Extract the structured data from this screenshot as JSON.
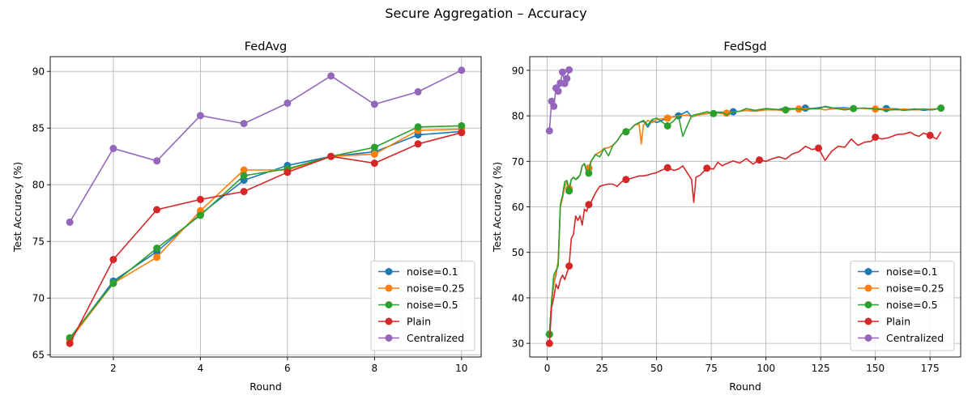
{
  "figure": {
    "suptitle": "Secure Aggregation – Accuracy"
  },
  "chart_data": [
    {
      "type": "line",
      "title": "FedAvg",
      "xlabel": "Round",
      "ylabel": "Test Accuracy (%)",
      "xlim": [
        0.55,
        10.45
      ],
      "ylim": [
        64.8,
        91.3
      ],
      "xticks": [
        2,
        4,
        6,
        8,
        10
      ],
      "yticks": [
        65,
        70,
        75,
        80,
        85,
        90
      ],
      "grid": true,
      "legend": "lower right",
      "series": [
        {
          "name": "noise=0.1",
          "color": "#1f77b4",
          "x": [
            1,
            2,
            3,
            4,
            5,
            6,
            7,
            8,
            9,
            10
          ],
          "y": [
            66.4,
            71.5,
            74.1,
            77.4,
            80.4,
            81.7,
            82.5,
            82.9,
            84.4,
            84.7
          ]
        },
        {
          "name": "noise=0.25",
          "color": "#ff7f0e",
          "x": [
            1,
            2,
            3,
            4,
            5,
            6,
            7,
            8,
            9,
            10
          ],
          "y": [
            66.3,
            71.3,
            73.6,
            77.7,
            81.3,
            81.3,
            82.5,
            82.7,
            84.8,
            84.9
          ]
        },
        {
          "name": "noise=0.5",
          "color": "#2ca02c",
          "x": [
            1,
            2,
            3,
            4,
            5,
            6,
            7,
            8,
            9,
            10
          ],
          "y": [
            66.5,
            71.3,
            74.4,
            77.3,
            80.8,
            81.4,
            82.5,
            83.3,
            85.1,
            85.2
          ]
        },
        {
          "name": "Plain",
          "color": "#d62728",
          "x": [
            1,
            2,
            3,
            4,
            5,
            6,
            7,
            8,
            9,
            10
          ],
          "y": [
            66.0,
            73.4,
            77.8,
            78.7,
            79.4,
            81.1,
            82.5,
            81.9,
            83.6,
            84.6
          ]
        },
        {
          "name": "Centralized",
          "color": "#9467bd",
          "x": [
            1,
            2,
            3,
            4,
            5,
            6,
            7,
            8,
            9,
            10
          ],
          "y": [
            76.7,
            83.2,
            82.1,
            86.1,
            85.4,
            87.2,
            89.6,
            87.1,
            88.2,
            90.1
          ]
        }
      ]
    },
    {
      "type": "line",
      "title": "FedSgd",
      "xlabel": "Round",
      "ylabel": "Test Accuracy (%)",
      "xlim": [
        -8,
        189
      ],
      "ylim": [
        27,
        93
      ],
      "xticks": [
        0,
        25,
        50,
        75,
        100,
        125,
        150,
        175
      ],
      "yticks": [
        30,
        40,
        50,
        60,
        70,
        80,
        90
      ],
      "grid": true,
      "legend": "lower right",
      "markevery": 9,
      "series": [
        {
          "name": "noise=0.1",
          "color": "#1f77b4",
          "x": [
            1,
            2,
            3,
            4,
            5,
            6,
            7,
            8,
            9,
            10,
            11,
            12,
            13,
            14,
            15,
            16,
            17,
            18,
            19,
            20,
            22,
            24,
            26,
            28,
            30,
            32,
            34,
            36,
            38,
            40,
            42,
            44,
            46,
            48,
            50,
            55,
            60,
            64,
            66,
            68,
            70,
            73,
            76,
            80,
            82,
            85,
            88,
            91,
            95,
            100,
            105,
            109,
            112,
            115,
            118,
            121,
            124,
            127,
            130,
            136,
            140,
            145,
            150,
            155,
            160,
            163,
            168,
            172,
            176,
            180
          ],
          "y": [
            32,
            39,
            43,
            45,
            48,
            60,
            62,
            64.5,
            65.5,
            64,
            66,
            66.5,
            66,
            66.3,
            67,
            69,
            69.5,
            67.8,
            68.5,
            70,
            71.5,
            72,
            72.8,
            73,
            73.5,
            74.5,
            76,
            76.5,
            77,
            78,
            78.5,
            78.8,
            77.5,
            79,
            78.5,
            79.5,
            80,
            81,
            79.8,
            80,
            80.3,
            80.5,
            80.8,
            80.8,
            80.6,
            80.9,
            81,
            81.2,
            81,
            81.4,
            81.3,
            81.8,
            81.5,
            81.6,
            81.7,
            81.6,
            81.8,
            82,
            81.7,
            81.8,
            81.6,
            81.7,
            81.5,
            81.6,
            81.5,
            81.3,
            81.5,
            81.2,
            81.4,
            81.6
          ]
        },
        {
          "name": "noise=0.25",
          "color": "#ff7f0e",
          "x": [
            1,
            2,
            3,
            4,
            5,
            6,
            7,
            8,
            9,
            10,
            11,
            12,
            13,
            14,
            15,
            16,
            17,
            18,
            19,
            20,
            22,
            24,
            26,
            28,
            30,
            32,
            34,
            36,
            38,
            40,
            42,
            43,
            44,
            46,
            48,
            50,
            55,
            60,
            64,
            66,
            68,
            70,
            73,
            76,
            80,
            82,
            85,
            88,
            91,
            95,
            100,
            105,
            109,
            112,
            115,
            118,
            121,
            124,
            127,
            130,
            136,
            140,
            145,
            150,
            155,
            160,
            163,
            168,
            172,
            176,
            180
          ],
          "y": [
            32,
            39,
            43,
            45.5,
            48,
            60,
            62,
            64.5,
            65.5,
            64,
            66,
            66.5,
            66,
            66.5,
            67,
            69,
            69.5,
            68,
            68.5,
            70,
            71.5,
            72,
            72.8,
            73,
            73.5,
            74.5,
            76,
            76.5,
            77,
            78,
            78.2,
            73.8,
            78,
            79,
            78.5,
            79.2,
            79.5,
            80,
            80.2,
            79.8,
            80,
            80.3,
            80.5,
            80.8,
            80.5,
            80.6,
            80.9,
            81,
            81.2,
            81,
            81.3,
            81.3,
            81.1,
            81.4,
            81.5,
            81.6,
            81.5,
            81.6,
            81.3,
            81.5,
            81.6,
            81.7,
            81.6,
            81.5,
            81.6,
            81.3,
            81.5,
            81.3,
            81.4,
            81.5,
            81.6
          ]
        },
        {
          "name": "noise=0.5",
          "color": "#2ca02c",
          "x": [
            1,
            2,
            3,
            4,
            5,
            6,
            7,
            8,
            9,
            10,
            11,
            12,
            13,
            14,
            15,
            16,
            17,
            18,
            19,
            20,
            22,
            24,
            26,
            28,
            30,
            32,
            34,
            36,
            37,
            38,
            40,
            42,
            44,
            46,
            48,
            50,
            55,
            58,
            60,
            62,
            64,
            66,
            68,
            70,
            73,
            76,
            80,
            82,
            85,
            88,
            91,
            95,
            100,
            105,
            109,
            112,
            115,
            118,
            121,
            124,
            127,
            130,
            136,
            140,
            145,
            150,
            155,
            160,
            163,
            168,
            172,
            176,
            180
          ],
          "y": [
            32,
            39.5,
            45,
            46,
            47,
            60.5,
            62.5,
            65.5,
            65.8,
            63.5,
            66,
            66.5,
            66,
            66.5,
            67,
            69,
            69.5,
            67.8,
            67.4,
            70,
            71.5,
            71,
            72.8,
            71.2,
            73.5,
            74.5,
            76,
            76.5,
            76.8,
            77,
            78,
            78.5,
            79,
            78,
            79.2,
            79.5,
            77.8,
            79,
            80,
            75.5,
            77.8,
            80,
            80.3,
            80.5,
            80.9,
            80.5,
            80.8,
            80.2,
            80.9,
            81,
            81.6,
            81.2,
            81.6,
            81.4,
            81.3,
            81.6,
            81.5,
            81.3,
            81.6,
            81.5,
            82.1,
            81.8,
            81.3,
            81.6,
            81.7,
            81.5,
            81.2,
            81.4,
            81.2,
            81.4,
            81.5,
            81.3,
            81.7
          ]
        },
        {
          "name": "Plain",
          "color": "#d62728",
          "x": [
            1,
            2,
            3,
            4,
            5,
            6,
            7,
            8,
            9,
            10,
            11,
            12,
            13,
            14,
            15,
            16,
            17,
            18,
            19,
            20,
            22,
            24,
            26,
            28,
            30,
            32,
            34,
            36,
            38,
            40,
            42,
            44,
            46,
            48,
            50,
            52,
            55,
            58,
            60,
            62,
            64,
            66,
            67,
            68,
            70,
            73,
            76,
            78,
            80,
            82,
            85,
            88,
            91,
            94,
            97,
            100,
            103,
            106,
            109,
            112,
            115,
            118,
            121,
            124,
            127,
            130,
            133,
            136,
            139,
            142,
            145,
            148,
            150,
            153,
            156,
            160,
            163,
            166,
            168,
            170,
            172,
            175,
            178,
            180
          ],
          "y": [
            30,
            38,
            40,
            43,
            42,
            44,
            45,
            44,
            45.5,
            47,
            53,
            54,
            58,
            57,
            58,
            56,
            59.5,
            59,
            60.5,
            61,
            63,
            64.5,
            64.8,
            65,
            65,
            64.5,
            65.5,
            66,
            66.2,
            66.5,
            66.8,
            66.8,
            67,
            67.3,
            67.5,
            68,
            68.6,
            68,
            68.3,
            69,
            67.5,
            66,
            61,
            66.5,
            67,
            68.5,
            68.3,
            69.8,
            69,
            69.5,
            70.1,
            69.6,
            70.6,
            69.4,
            70.3,
            70,
            70.6,
            71,
            70.5,
            71.6,
            72.1,
            73.3,
            72.6,
            72.9,
            70.2,
            72.2,
            73.3,
            73.1,
            74.9,
            73.5,
            74.2,
            74.4,
            75.3,
            74.9,
            75.2,
            75.9,
            76,
            76.4,
            75.8,
            75.5,
            76.2,
            75.7,
            74.9,
            76.5
          ]
        },
        {
          "name": "Centralized",
          "color": "#9467bd",
          "x": [
            1,
            2,
            3,
            4,
            5,
            6,
            7,
            8,
            9,
            10
          ],
          "y": [
            76.7,
            83.2,
            82.1,
            86.1,
            85.4,
            87.2,
            89.6,
            87.1,
            88.2,
            90.1
          ]
        }
      ]
    }
  ]
}
